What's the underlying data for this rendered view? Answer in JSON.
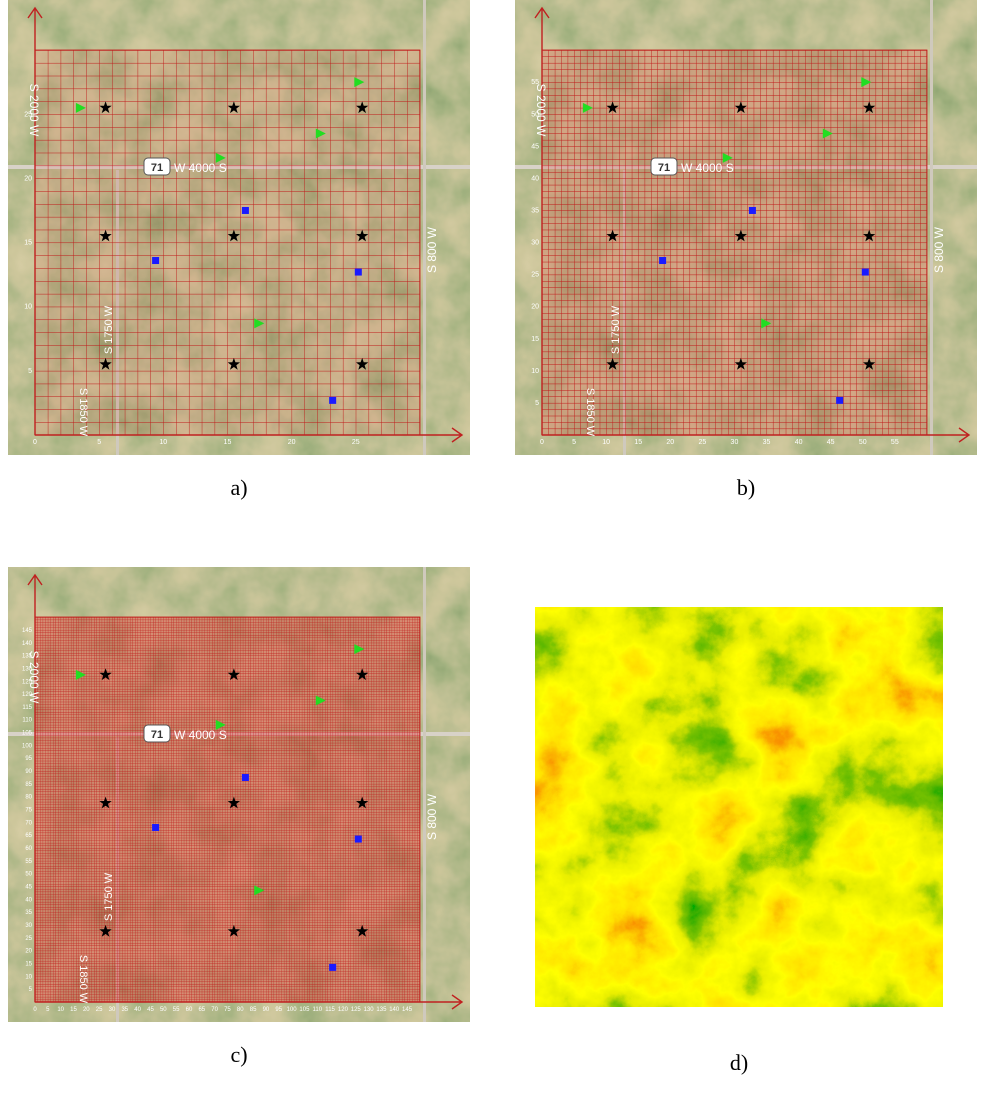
{
  "panels": [
    {
      "caption": "a)",
      "scale": 1,
      "xticks": [
        0,
        5,
        10,
        15,
        20,
        25
      ],
      "yticks": [
        5,
        10,
        15,
        20,
        25
      ]
    },
    {
      "caption": "b)",
      "scale": 2,
      "xticks": [
        0,
        5,
        10,
        15,
        20,
        25,
        30,
        35,
        40,
        45,
        50,
        55
      ],
      "yticks": [
        5,
        10,
        15,
        20,
        25,
        30,
        35,
        40,
        45,
        50,
        55
      ]
    },
    {
      "caption": "c)",
      "scale": 5,
      "xticks": [
        0,
        5,
        10,
        15,
        20,
        25,
        30,
        35,
        40,
        45,
        50,
        55,
        60,
        65,
        70,
        75,
        80,
        85,
        90,
        95,
        100,
        105,
        110,
        115,
        120,
        125,
        130,
        135,
        140,
        145
      ],
      "yticks": [
        5,
        10,
        15,
        20,
        25,
        30,
        35,
        40,
        45,
        50,
        55,
        60,
        65,
        70,
        75,
        80,
        85,
        90,
        95,
        100,
        105,
        110,
        115,
        120,
        125,
        130,
        135,
        140,
        145
      ]
    },
    {
      "caption": "d)"
    }
  ],
  "road_labels": [
    "W 4000 S",
    "S 800 W",
    "S 2000 W",
    "S 1750 W",
    "S 1850 W"
  ],
  "route": "71",
  "markers": [
    {
      "kind": "star",
      "x": 5.5,
      "y": 25.5
    },
    {
      "kind": "star",
      "x": 15.5,
      "y": 25.5
    },
    {
      "kind": "star",
      "x": 25.5,
      "y": 25.5
    },
    {
      "kind": "star",
      "x": 5.5,
      "y": 15.5
    },
    {
      "kind": "star",
      "x": 15.5,
      "y": 15.5
    },
    {
      "kind": "star",
      "x": 25.5,
      "y": 15.5
    },
    {
      "kind": "star",
      "x": 5.5,
      "y": 5.5
    },
    {
      "kind": "star",
      "x": 15.5,
      "y": 5.5
    },
    {
      "kind": "star",
      "x": 25.5,
      "y": 5.5
    },
    {
      "kind": "triangle",
      "x": 3.5,
      "y": 25.5
    },
    {
      "kind": "triangle",
      "x": 25.2,
      "y": 27.5
    },
    {
      "kind": "triangle",
      "x": 22.2,
      "y": 23.5
    },
    {
      "kind": "triangle",
      "x": 14.4,
      "y": 21.6
    },
    {
      "kind": "triangle",
      "x": 17.4,
      "y": 8.7
    },
    {
      "kind": "square",
      "x": 16.4,
      "y": 17.5
    },
    {
      "kind": "square",
      "x": 9.4,
      "y": 13.6
    },
    {
      "kind": "square",
      "x": 25.2,
      "y": 12.7
    },
    {
      "kind": "square",
      "x": 23.2,
      "y": 2.7
    }
  ]
}
